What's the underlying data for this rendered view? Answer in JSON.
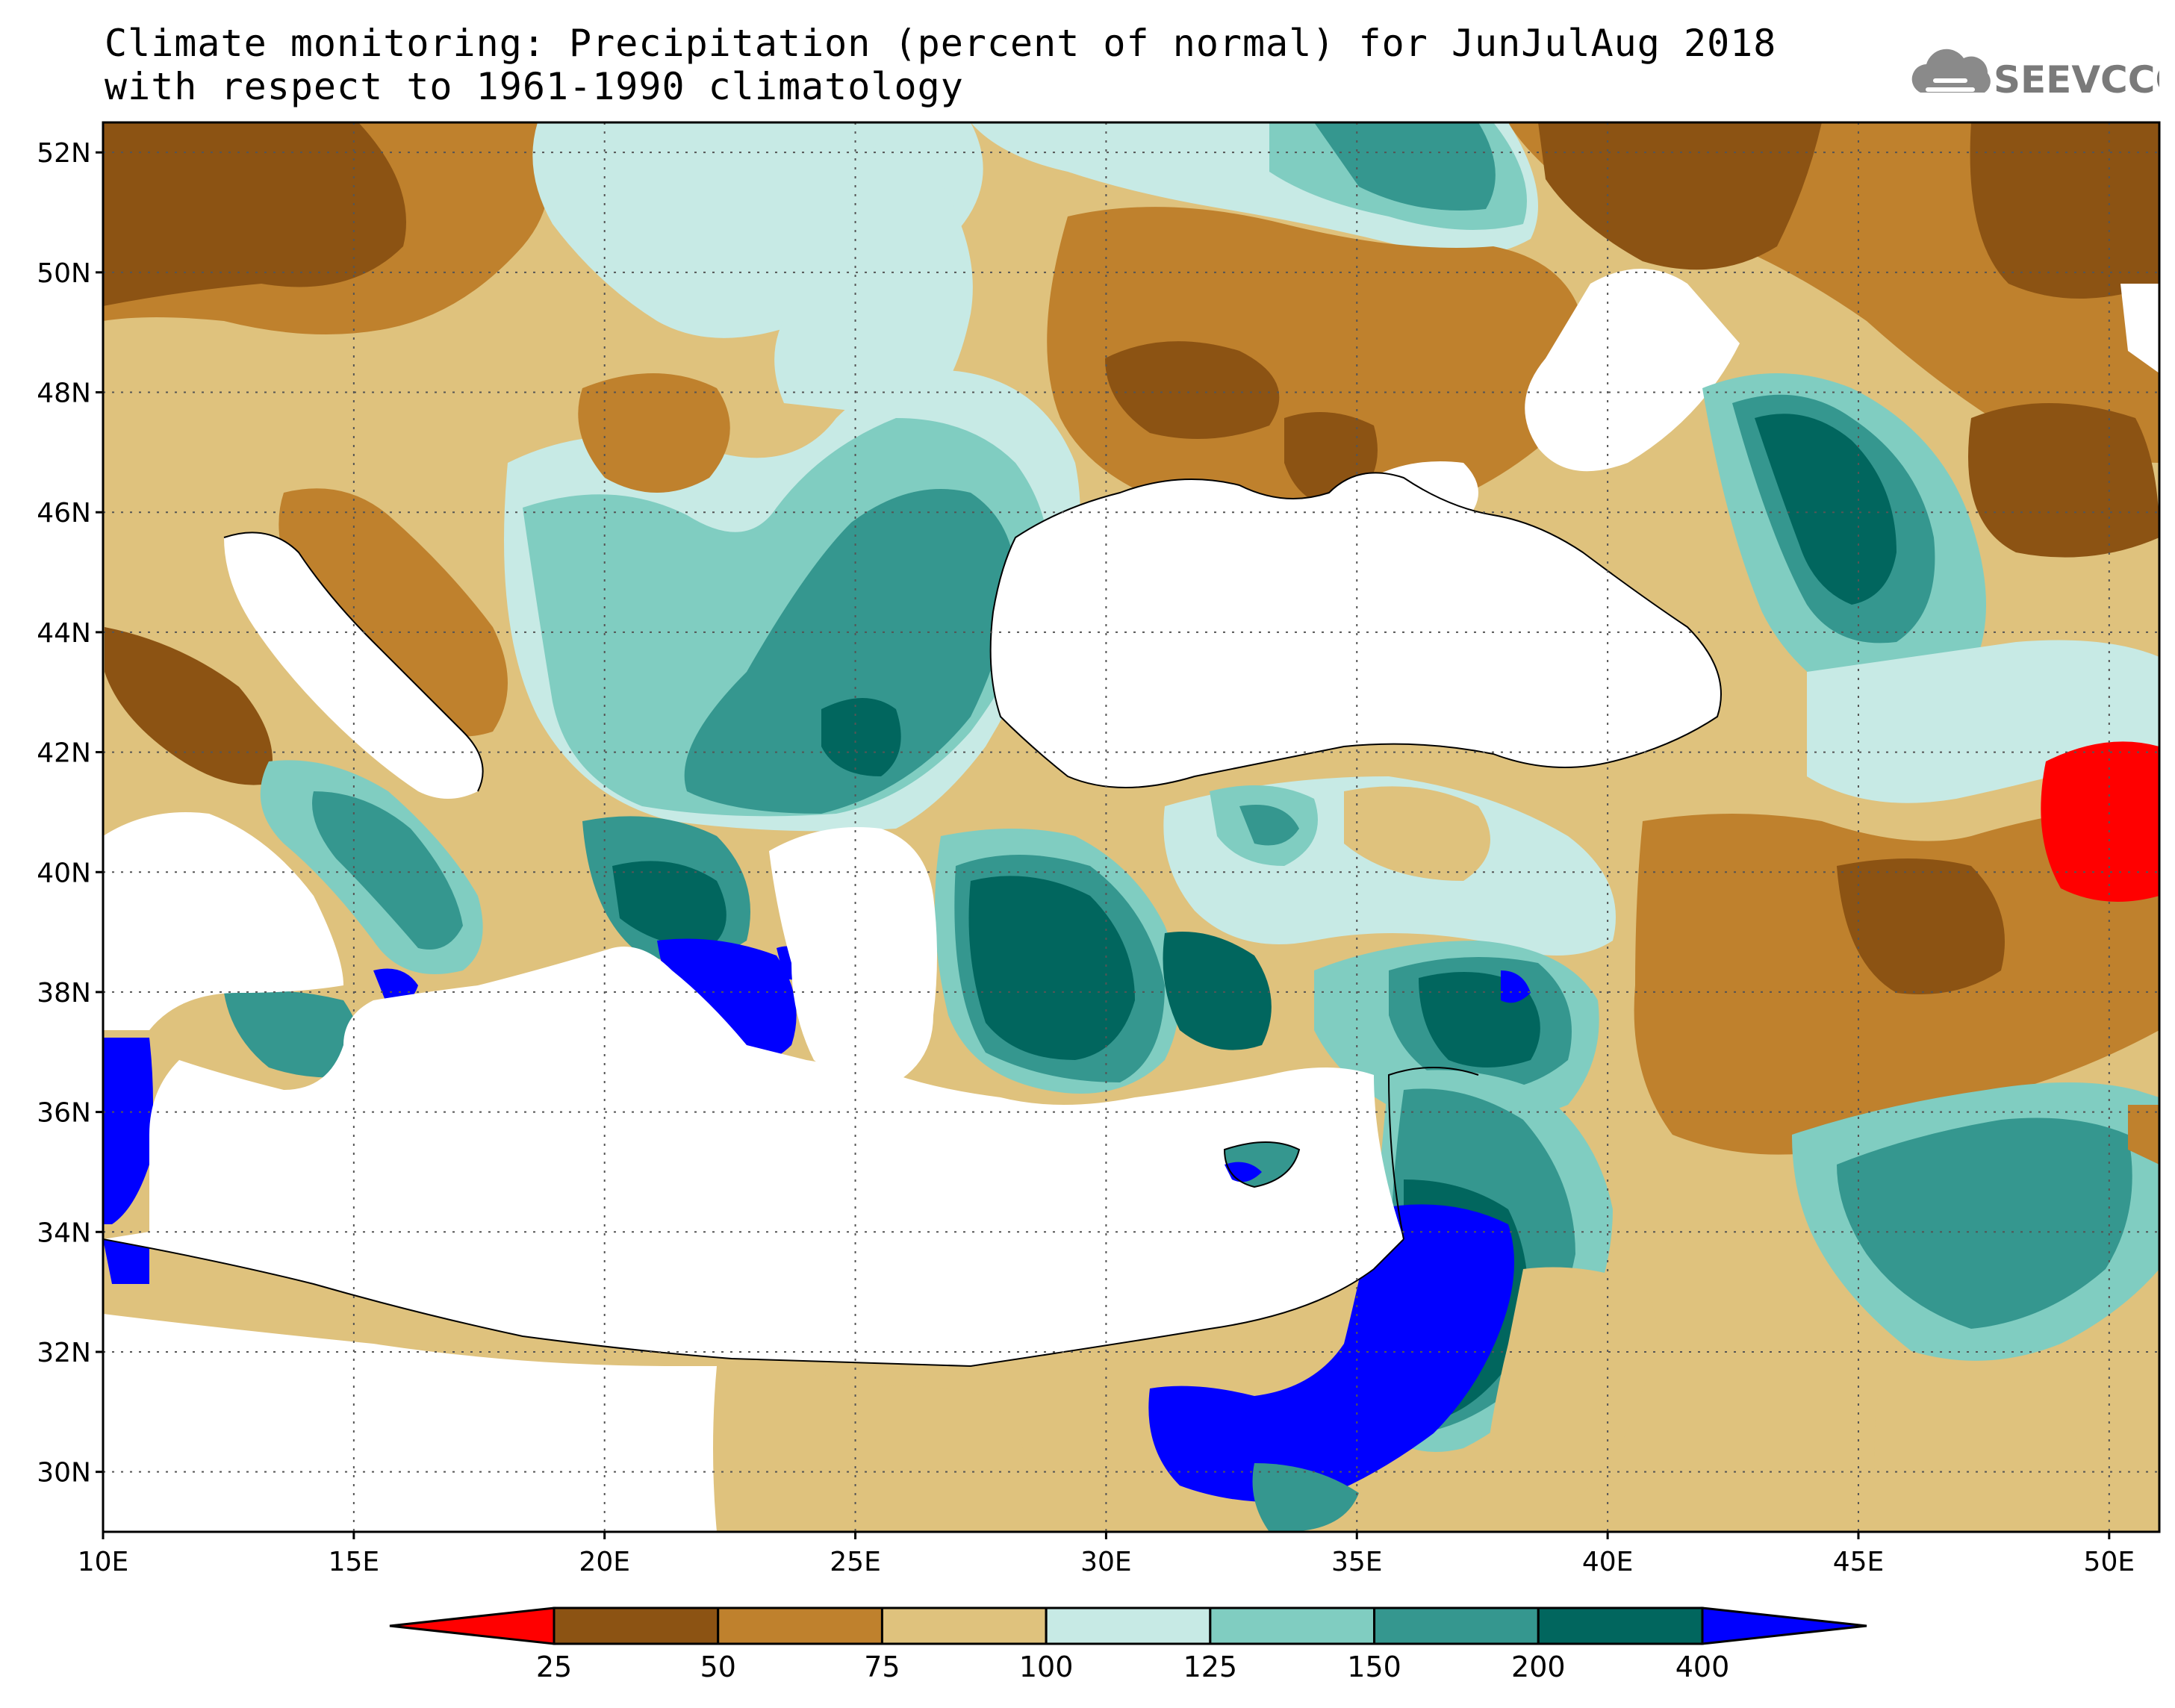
{
  "header": {
    "title_line1": "Climate monitoring: Precipitation (percent of normal) for JunJulAug 2018",
    "title_line2": "with respect to 1961-1990 climatology"
  },
  "logo": {
    "text": "SEEVCCC",
    "icon": "cloud-icon"
  },
  "map": {
    "lat_labels": [
      "52N",
      "50N",
      "48N",
      "46N",
      "44N",
      "42N",
      "40N",
      "38N",
      "36N",
      "34N",
      "32N",
      "30N"
    ],
    "lon_labels": [
      "10E",
      "15E",
      "20E",
      "25E",
      "30E",
      "35E",
      "40E",
      "45E",
      "50E"
    ],
    "lat_range": [
      29,
      52.5
    ],
    "lon_range": [
      10,
      51
    ],
    "gridlines": true
  },
  "colorbar": {
    "labels": [
      "25",
      "50",
      "75",
      "100",
      "125",
      "150",
      "200",
      "400"
    ],
    "colors": {
      "below_25": "#ff0000",
      "25_50": "#8c5313",
      "50_75": "#bf812d",
      "75_100": "#dfc27d",
      "100_125": "#c7eae5",
      "125_150": "#80cdc1",
      "150_200": "#35978f",
      "200_400": "#01665e",
      "above_400": "#0000ff"
    }
  }
}
